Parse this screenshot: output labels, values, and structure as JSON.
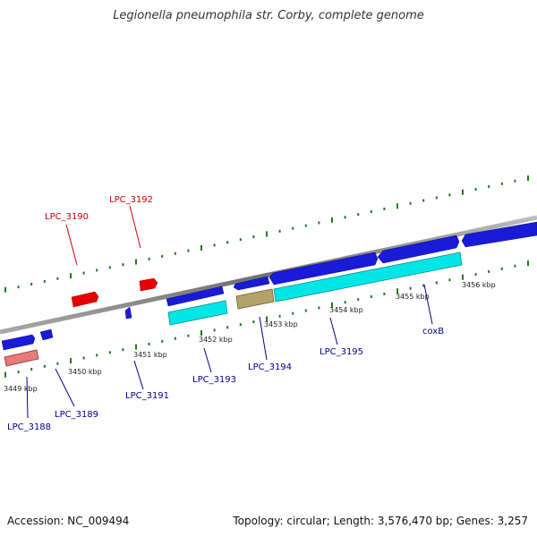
{
  "title": "Legionella pneumophila str. Corby, complete genome",
  "footer": {
    "accession": "Accession: NC_009494",
    "topology": "Topology: circular; Length: 3,576,470 bp; Genes: 3,257"
  },
  "colors": {
    "backbone": "#8c8c8c",
    "forward_gene": "#1a1ad9",
    "reverse_gene_red": "#e60000",
    "cds_cyan": "#00e6e6",
    "cds_olive": "#b3a36b",
    "cds_salmon": "#e87a7a",
    "tick": "#1f7a1f",
    "label_red": "#cc0000",
    "label_blue": "#00008b"
  },
  "ticks": [
    "3449 kbp",
    "3450 kbp",
    "3451 kbp",
    "3452 kbp",
    "3453 kbp",
    "3454 kbp",
    "3455 kbp",
    "3456 kbp"
  ],
  "genes_top": [
    "LPC_3190",
    "LPC_3192"
  ],
  "genes_bottom": [
    "LPC_3188",
    "LPC_3189",
    "LPC_3191",
    "LPC_3193",
    "LPC_3194",
    "LPC_3195",
    "coxB"
  ]
}
